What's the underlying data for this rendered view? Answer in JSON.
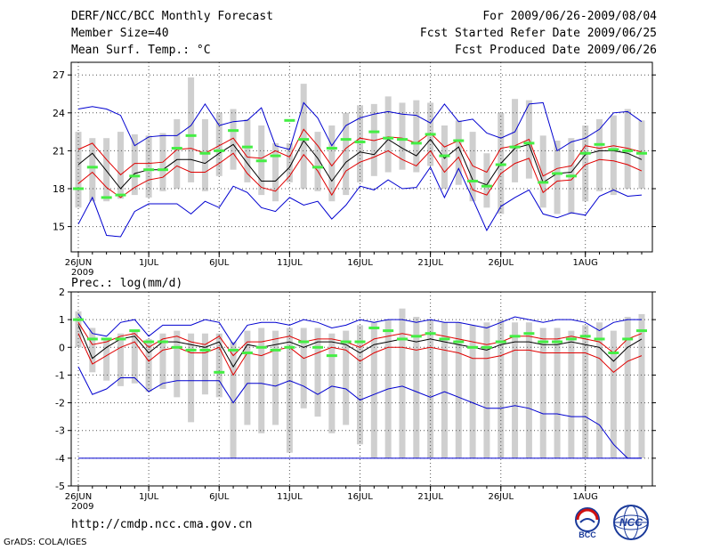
{
  "header": {
    "title": "DERF/NCC/BCC Monthly Forecast",
    "member_size": "Member Size=40",
    "variable_top": "Mean Surf. Temp.: °C",
    "period": "For 2009/06/26-2009/08/04",
    "started": "Fcst Started Refer Date 2009/06/25",
    "produced": "Fcst Produced Date 2009/06/26"
  },
  "footer": {
    "url": "http://cmdp.ncc.cma.gov.cn",
    "grads": "GrADS: COLA/IGES",
    "logo_bcc": "BCC",
    "logo_ncc": "NCC"
  },
  "colors": {
    "mean": "#000000",
    "spread": "#e00000",
    "extreme": "#0000d0",
    "box": "#cfcfcf",
    "marker": "#44ee44",
    "grid": "#555555"
  },
  "chart_data": [
    {
      "type": "line",
      "title": "Mean Surf. Temp.: °C",
      "ylim": [
        13,
        28
      ],
      "yticks": [
        15,
        18,
        21,
        24,
        27
      ],
      "xticks": [
        {
          "i": 0,
          "label": "26JUN",
          "sub": "2009"
        },
        {
          "i": 5,
          "label": "1JUL"
        },
        {
          "i": 10,
          "label": "6JUL"
        },
        {
          "i": 15,
          "label": "11JUL"
        },
        {
          "i": 20,
          "label": "16JUL"
        },
        {
          "i": 25,
          "label": "21JUL"
        },
        {
          "i": 30,
          "label": "26JUL"
        },
        {
          "i": 36,
          "label": "1AUG"
        }
      ],
      "series": [
        {
          "name": "max",
          "role": "extreme",
          "values": [
            24.3,
            24.5,
            24.3,
            23.8,
            21.4,
            22.1,
            22.2,
            22.2,
            23.0,
            24.7,
            23.0,
            23.3,
            23.4,
            24.4,
            21.4,
            21.1,
            24.8,
            23.6,
            21.4,
            23.0,
            23.6,
            23.9,
            24.1,
            23.9,
            23.8,
            23.2,
            24.7,
            23.3,
            23.5,
            22.4,
            22.0,
            22.5,
            24.7,
            24.8,
            21.0,
            21.7,
            22.0,
            22.7,
            24.0,
            24.1,
            23.3
          ]
        },
        {
          "name": "upper",
          "role": "spread",
          "values": [
            21.1,
            21.6,
            20.3,
            19.1,
            20.0,
            20.0,
            20.1,
            21.1,
            21.2,
            20.8,
            21.4,
            22.0,
            20.5,
            20.4,
            21.0,
            20.5,
            22.7,
            21.4,
            19.8,
            21.2,
            22.0,
            21.8,
            22.1,
            22.0,
            21.6,
            22.4,
            21.3,
            21.8,
            19.8,
            19.3,
            21.2,
            21.4,
            21.9,
            19.0,
            19.6,
            19.8,
            21.4,
            21.2,
            21.4,
            21.2,
            20.9
          ]
        },
        {
          "name": "mean",
          "role": "mean",
          "values": [
            19.9,
            20.8,
            19.4,
            18.0,
            19.2,
            19.5,
            19.5,
            20.3,
            20.3,
            20.0,
            20.8,
            21.5,
            20.0,
            18.6,
            18.6,
            19.7,
            21.8,
            20.4,
            18.6,
            20.1,
            20.9,
            20.7,
            21.9,
            21.2,
            20.6,
            21.9,
            20.4,
            21.3,
            18.7,
            18.3,
            20.0,
            21.2,
            21.5,
            18.5,
            19.2,
            19.3,
            20.7,
            21.0,
            21.0,
            20.8,
            20.3
          ]
        },
        {
          "name": "lower",
          "role": "spread",
          "values": [
            18.4,
            19.3,
            18.1,
            17.3,
            18.1,
            18.7,
            18.9,
            19.8,
            19.3,
            19.3,
            20.0,
            20.8,
            19.2,
            18.1,
            17.8,
            19.0,
            20.7,
            19.4,
            17.5,
            19.4,
            20.1,
            20.5,
            21.0,
            20.3,
            19.8,
            21.0,
            19.3,
            20.5,
            17.9,
            17.5,
            19.2,
            20.0,
            20.4,
            17.7,
            18.6,
            18.7,
            19.9,
            20.3,
            20.2,
            19.9,
            19.4
          ]
        },
        {
          "name": "min",
          "role": "extreme",
          "values": [
            15.2,
            17.3,
            14.3,
            14.2,
            16.2,
            16.8,
            16.8,
            16.8,
            16.0,
            17.0,
            16.5,
            18.2,
            17.7,
            16.5,
            16.2,
            17.3,
            16.7,
            17.0,
            15.6,
            16.7,
            18.2,
            17.9,
            18.7,
            18.0,
            18.1,
            19.7,
            17.3,
            19.6,
            17.2,
            14.7,
            16.6,
            17.3,
            17.9,
            16.0,
            15.7,
            16.1,
            15.9,
            17.4,
            17.9,
            17.4,
            17.5
          ]
        },
        {
          "name": "box_high",
          "role": "box",
          "values": [
            22.5,
            22.0,
            22.0,
            22.5,
            22.3,
            22.2,
            22.4,
            23.5,
            26.8,
            23.5,
            24.0,
            24.3,
            23.5,
            23.0,
            21.6,
            21.6,
            26.3,
            22.5,
            23.0,
            24.0,
            24.6,
            24.7,
            25.3,
            24.8,
            25.0,
            24.8,
            23.0,
            23.4,
            22.5,
            20.8,
            24.0,
            25.1,
            25.0,
            22.2,
            21.8,
            22.0,
            23.0,
            23.5,
            23.8,
            24.3,
            23.4
          ]
        },
        {
          "name": "box_low",
          "role": "box",
          "values": [
            16.5,
            17.0,
            17.0,
            17.2,
            17.5,
            17.3,
            17.8,
            18.0,
            18.5,
            17.8,
            19.0,
            19.5,
            18.5,
            17.5,
            17.0,
            18.5,
            18.0,
            17.8,
            17.0,
            17.5,
            18.5,
            19.0,
            19.3,
            19.5,
            19.3,
            19.8,
            18.0,
            18.3,
            17.0,
            16.5,
            16.0,
            18.5,
            18.8,
            16.5,
            16.0,
            16.0,
            17.0,
            17.8,
            17.5,
            18.0,
            18.0
          ]
        },
        {
          "name": "marker",
          "role": "marker",
          "values": [
            18.0,
            19.7,
            17.3,
            17.5,
            19.0,
            19.5,
            19.5,
            21.2,
            22.2,
            20.8,
            21.0,
            22.6,
            21.3,
            20.2,
            20.6,
            23.4,
            21.9,
            19.7,
            21.2,
            21.9,
            21.7,
            22.5,
            22.0,
            21.9,
            21.6,
            22.3,
            20.6,
            21.8,
            18.6,
            18.2,
            19.9,
            21.3,
            21.6,
            18.5,
            19.2,
            19.0,
            20.8,
            21.5,
            21.1,
            21.0,
            20.8
          ]
        }
      ]
    },
    {
      "type": "line",
      "title": "Prec.: log(mm/d)",
      "ylim": [
        -5,
        2
      ],
      "yticks": [
        -5,
        -4,
        -3,
        -2,
        -1,
        0,
        1,
        2
      ],
      "xticks": [
        {
          "i": 0,
          "label": "26JUN",
          "sub": "2009"
        },
        {
          "i": 5,
          "label": "1JUL"
        },
        {
          "i": 10,
          "label": "6JUL"
        },
        {
          "i": 15,
          "label": "11JUL"
        },
        {
          "i": 20,
          "label": "16JUL"
        },
        {
          "i": 25,
          "label": "21JUL"
        },
        {
          "i": 30,
          "label": "26JUL"
        },
        {
          "i": 36,
          "label": "1AUG"
        }
      ],
      "series": [
        {
          "name": "max",
          "role": "extreme",
          "values": [
            1.2,
            0.5,
            0.4,
            0.9,
            1.0,
            0.4,
            0.8,
            0.8,
            0.8,
            1.0,
            0.9,
            0.1,
            0.8,
            0.9,
            0.9,
            0.8,
            1.0,
            0.9,
            0.7,
            0.8,
            1.0,
            0.9,
            1.0,
            1.0,
            0.9,
            1.0,
            0.9,
            0.9,
            0.8,
            0.7,
            0.9,
            1.1,
            1.0,
            0.9,
            1.0,
            1.0,
            0.9,
            0.6,
            0.9,
            1.0,
            1.0
          ]
        },
        {
          "name": "upper",
          "role": "spread",
          "values": [
            0.9,
            0.1,
            0.2,
            0.4,
            0.5,
            0.0,
            0.3,
            0.4,
            0.2,
            0.1,
            0.4,
            -0.3,
            0.2,
            0.2,
            0.3,
            0.4,
            0.2,
            0.3,
            0.3,
            0.2,
            0.0,
            0.3,
            0.4,
            0.5,
            0.4,
            0.5,
            0.4,
            0.3,
            0.2,
            0.1,
            0.2,
            0.4,
            0.4,
            0.3,
            0.3,
            0.4,
            0.3,
            0.2,
            -0.2,
            0.3,
            0.5
          ]
        },
        {
          "name": "mean",
          "role": "mean",
          "values": [
            0.8,
            -0.4,
            0.0,
            0.3,
            0.4,
            -0.2,
            0.2,
            0.2,
            0.1,
            0.0,
            0.2,
            -0.7,
            0.1,
            0.0,
            0.1,
            0.2,
            0.0,
            0.2,
            0.2,
            0.1,
            -0.2,
            0.1,
            0.2,
            0.3,
            0.2,
            0.3,
            0.2,
            0.1,
            0.0,
            -0.1,
            0.1,
            0.2,
            0.2,
            0.1,
            0.1,
            0.2,
            0.1,
            0.0,
            -0.5,
            0.0,
            0.3
          ]
        },
        {
          "name": "lower",
          "role": "spread",
          "values": [
            0.5,
            -0.6,
            -0.3,
            0.0,
            0.2,
            -0.5,
            -0.1,
            0.0,
            -0.2,
            -0.2,
            0.0,
            -1.0,
            -0.2,
            -0.3,
            -0.1,
            0.0,
            -0.4,
            -0.2,
            0.0,
            -0.1,
            -0.5,
            -0.2,
            0.0,
            0.0,
            -0.1,
            0.0,
            -0.1,
            -0.2,
            -0.4,
            -0.4,
            -0.3,
            -0.1,
            -0.1,
            -0.2,
            -0.2,
            -0.2,
            -0.2,
            -0.4,
            -0.9,
            -0.5,
            -0.3
          ]
        },
        {
          "name": "min",
          "role": "extreme",
          "values": [
            -0.7,
            -1.7,
            -1.5,
            -1.1,
            -1.1,
            -1.6,
            -1.3,
            -1.2,
            -1.2,
            -1.2,
            -1.2,
            -2.0,
            -1.3,
            -1.3,
            -1.4,
            -1.2,
            -1.4,
            -1.7,
            -1.4,
            -1.5,
            -1.9,
            -1.7,
            -1.5,
            -1.4,
            -1.6,
            -1.8,
            -1.6,
            -1.8,
            -2.0,
            -2.2,
            -2.2,
            -2.1,
            -2.2,
            -2.4,
            -2.4,
            -2.5,
            -2.5,
            -2.8,
            -3.5,
            -4.0,
            -4.0
          ]
        },
        {
          "name": "floor",
          "role": "extreme",
          "values": [
            -4,
            -4,
            -4,
            -4,
            -4,
            -4,
            -4,
            -4,
            -4,
            -4,
            -4,
            -4,
            -4,
            -4,
            -4,
            -4,
            -4,
            -4,
            -4,
            -4,
            -4,
            -4,
            -4,
            -4,
            -4,
            -4,
            -4,
            -4,
            -4,
            -4,
            -4,
            -4,
            -4,
            -4,
            -4,
            -4,
            -4,
            -4,
            -4,
            -4,
            -4
          ]
        },
        {
          "name": "box_high",
          "role": "box",
          "values": [
            1.3,
            0.7,
            0.3,
            0.5,
            0.6,
            0.3,
            0.5,
            0.6,
            0.5,
            0.5,
            0.5,
            0.2,
            0.6,
            0.7,
            0.6,
            0.7,
            0.7,
            0.7,
            0.5,
            0.6,
            0.8,
            0.9,
            1.0,
            1.4,
            1.1,
            1.0,
            0.9,
            0.9,
            0.8,
            0.9,
            1.0,
            0.9,
            0.9,
            0.7,
            0.7,
            0.6,
            0.8,
            0.9,
            0.6,
            1.1,
            1.2
          ]
        },
        {
          "name": "box_low",
          "role": "box",
          "values": [
            0.0,
            -0.9,
            -1.2,
            -1.4,
            -1.3,
            -1.6,
            -1.5,
            -1.8,
            -2.7,
            -1.7,
            -1.8,
            -4.0,
            -2.8,
            -3.1,
            -2.8,
            -3.8,
            -2.2,
            -2.5,
            -3.1,
            -2.8,
            -3.5,
            -4.0,
            -4.0,
            -4.0,
            -4.0,
            -4.0,
            -4.0,
            -4.0,
            -4.0,
            -4.0,
            -4.0,
            -4.0,
            -4.0,
            -4.0,
            -4.0,
            -4.0,
            -4.0,
            -4.0,
            -4.0,
            -4.0,
            -4.0
          ]
        },
        {
          "name": "marker",
          "role": "marker",
          "values": [
            1.0,
            0.3,
            0.3,
            0.3,
            0.6,
            0.2,
            0.2,
            0.0,
            -0.1,
            -0.1,
            -0.9,
            -0.1,
            -0.2,
            0.0,
            -0.1,
            0.0,
            0.2,
            0.0,
            -0.3,
            0.2,
            0.2,
            0.7,
            0.6,
            0.3,
            0.4,
            0.5,
            0.3,
            0.2,
            0.0,
            0.0,
            0.2,
            0.4,
            0.5,
            0.2,
            0.2,
            0.3,
            0.4,
            0.3,
            -0.2,
            0.3,
            0.6
          ]
        }
      ]
    }
  ]
}
